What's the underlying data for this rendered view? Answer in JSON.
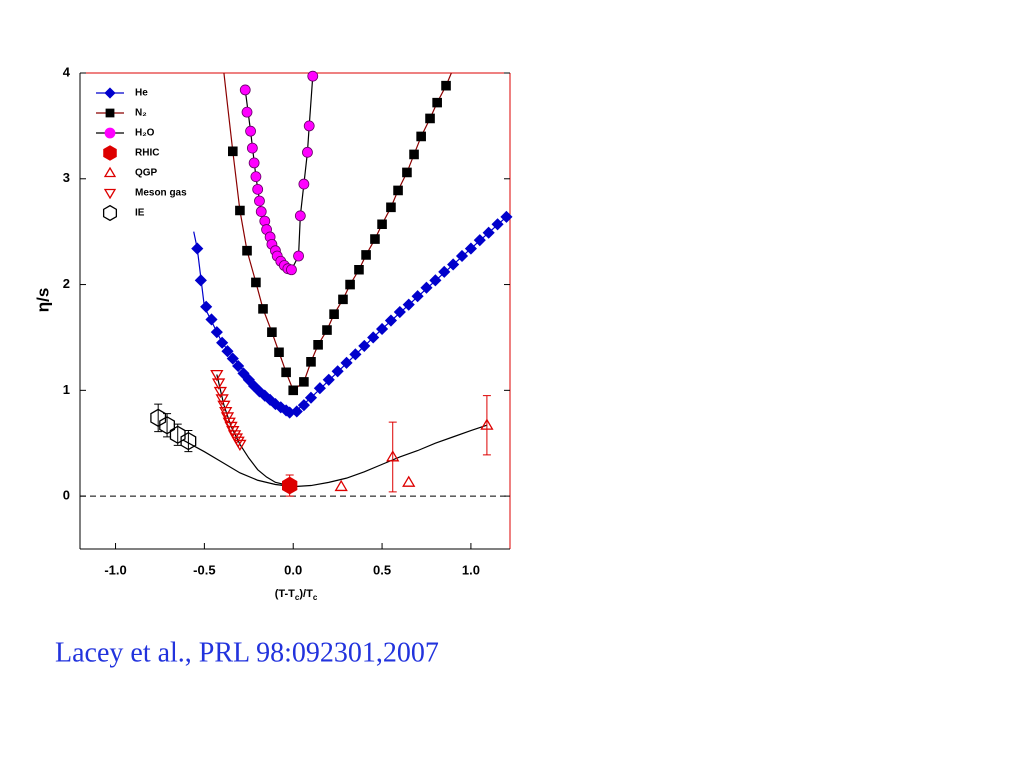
{
  "chart_data": {
    "type": "scatter",
    "xlabel": [
      "(T-T",
      "c",
      ")/T",
      "c"
    ],
    "ylabel": "η/s",
    "caption": "Lacey et al., PRL 98:092301,2007",
    "xlim": [
      -1.2,
      1.22
    ],
    "ylim": [
      -0.5,
      4
    ],
    "xticks": [
      {
        "value": -1,
        "label": "-1.0"
      },
      -0.5,
      {
        "value": 0,
        "label": "0.0"
      },
      0.5,
      {
        "value": 1,
        "label": "1.0"
      }
    ],
    "yticks": [
      0,
      1,
      2,
      3,
      4
    ],
    "hline": 0,
    "series": [
      {
        "name": "He",
        "color": "#0000cc",
        "marker": "diamond",
        "fill": true,
        "x": [
          -0.54,
          -0.52,
          -0.49,
          -0.46,
          -0.43,
          -0.4,
          -0.37,
          -0.34,
          -0.31,
          -0.28,
          -0.25,
          -0.22,
          -0.19,
          -0.16,
          -0.13,
          -0.1,
          -0.07,
          -0.04,
          -0.02,
          0.02,
          0.06,
          0.1,
          0.15,
          0.2,
          0.25,
          0.3,
          0.35,
          0.4,
          0.45,
          0.5,
          0.55,
          0.6,
          0.65,
          0.7,
          0.75,
          0.8,
          0.85,
          0.9,
          0.95,
          1.0,
          1.05,
          1.1,
          1.15,
          1.2
        ],
        "y": [
          2.34,
          2.04,
          1.79,
          1.67,
          1.55,
          1.45,
          1.37,
          1.3,
          1.23,
          1.16,
          1.1,
          1.04,
          0.99,
          0.95,
          0.91,
          0.87,
          0.84,
          0.81,
          0.79,
          0.8,
          0.86,
          0.93,
          1.02,
          1.1,
          1.18,
          1.26,
          1.34,
          1.42,
          1.5,
          1.58,
          1.66,
          1.74,
          1.81,
          1.89,
          1.97,
          2.04,
          2.12,
          2.19,
          2.27,
          2.34,
          2.42,
          2.49,
          2.57,
          2.64
        ]
      },
      {
        "name": "N₂",
        "color": "#000000",
        "marker": "square",
        "fill": true,
        "x": [
          -0.34,
          -0.3,
          -0.26,
          -0.21,
          -0.17,
          -0.12,
          -0.08,
          -0.04,
          0.0,
          0.06,
          0.1,
          0.14,
          0.19,
          0.23,
          0.28,
          0.32,
          0.37,
          0.41,
          0.46,
          0.5,
          0.55,
          0.59,
          0.64,
          0.68,
          0.72,
          0.77,
          0.81,
          0.86
        ],
        "y": [
          3.26,
          2.7,
          2.32,
          2.02,
          1.77,
          1.55,
          1.36,
          1.17,
          1.0,
          1.08,
          1.27,
          1.43,
          1.57,
          1.72,
          1.86,
          2.0,
          2.14,
          2.28,
          2.43,
          2.57,
          2.73,
          2.89,
          3.06,
          3.23,
          3.4,
          3.57,
          3.72,
          3.88
        ]
      },
      {
        "name": "H₂O",
        "color": "#ff00ff",
        "marker": "circle",
        "fill": true,
        "x": [
          -0.27,
          -0.26,
          -0.24,
          -0.23,
          -0.22,
          -0.21,
          -0.2,
          -0.19,
          -0.18,
          -0.16,
          -0.15,
          -0.13,
          -0.12,
          -0.1,
          -0.09,
          -0.07,
          -0.05,
          -0.03,
          -0.01,
          0.03,
          0.04,
          0.06,
          0.08,
          0.09,
          0.11
        ],
        "y": [
          3.84,
          3.63,
          3.45,
          3.29,
          3.15,
          3.02,
          2.9,
          2.79,
          2.69,
          2.6,
          2.52,
          2.45,
          2.38,
          2.32,
          2.27,
          2.22,
          2.18,
          2.15,
          2.14,
          2.27,
          2.65,
          2.95,
          3.25,
          3.5,
          3.97
        ]
      },
      {
        "name": "RHIC",
        "color": "#dd0000",
        "marker": "hexagon",
        "fill": true,
        "x": [
          -0.02
        ],
        "y": [
          0.1
        ],
        "errors": [
          0.1
        ]
      },
      {
        "name": "QGP",
        "color": "#dd0000",
        "marker": "triangle-up",
        "fill": false,
        "x": [
          0.27,
          0.56,
          0.65,
          1.09
        ],
        "y": [
          0.09,
          0.37,
          0.13,
          0.67
        ],
        "errors": [
          0,
          0.33,
          0,
          0.28
        ]
      },
      {
        "name": "Meson gas",
        "color": "#dd0000",
        "marker": "triangle-down",
        "fill": false,
        "x": [
          -0.43,
          -0.42,
          -0.41,
          -0.4,
          -0.39,
          -0.38,
          -0.37,
          -0.36,
          -0.35,
          -0.34,
          -0.33,
          -0.32,
          -0.31,
          -0.3
        ],
        "y": [
          1.15,
          1.07,
          0.99,
          0.92,
          0.86,
          0.8,
          0.75,
          0.7,
          0.66,
          0.62,
          0.58,
          0.55,
          0.52,
          0.49
        ]
      },
      {
        "name": "IE",
        "color": "#000000",
        "marker": "hexagon",
        "fill": false,
        "x": [
          -0.76,
          -0.71,
          -0.65,
          -0.59
        ],
        "y": [
          0.74,
          0.67,
          0.58,
          0.52
        ],
        "errors": [
          0.13,
          0.11,
          0.1,
          0.1
        ]
      }
    ],
    "curves": [
      {
        "color": "#0000cc",
        "x": [
          -0.56,
          -0.54,
          -0.5,
          -0.45,
          -0.4,
          -0.3,
          -0.2,
          -0.1,
          0.0,
          0.1,
          0.5,
          1.0,
          1.2
        ],
        "y": [
          2.5,
          2.34,
          1.79,
          1.62,
          1.45,
          1.23,
          1.01,
          0.87,
          0.78,
          0.93,
          1.58,
          2.34,
          2.64
        ]
      },
      {
        "color": "#8b0000",
        "x": [
          -0.39,
          -0.37,
          -0.34,
          -0.3,
          -0.26,
          -0.21,
          -0.17,
          -0.12,
          -0.08,
          -0.04,
          0.0,
          0.06,
          0.1,
          0.14,
          0.19,
          0.23,
          0.28,
          0.32,
          0.37,
          0.41,
          0.46,
          0.5,
          0.55,
          0.59,
          0.64,
          0.68,
          0.72,
          0.77,
          0.81,
          0.86,
          0.89
        ],
        "y": [
          4,
          3.7,
          3.26,
          2.7,
          2.32,
          2.02,
          1.77,
          1.55,
          1.36,
          1.17,
          1.0,
          1.08,
          1.27,
          1.43,
          1.57,
          1.72,
          1.86,
          2.0,
          2.14,
          2.28,
          2.43,
          2.57,
          2.73,
          2.89,
          3.06,
          3.23,
          3.4,
          3.57,
          3.72,
          3.88,
          4
        ]
      },
      {
        "color": "#000000",
        "x": [
          -0.27,
          -0.24,
          -0.21,
          -0.18,
          -0.15,
          -0.12,
          -0.09,
          -0.05,
          -0.01,
          0.03,
          0.04,
          0.06,
          0.08,
          0.09,
          0.11,
          0.13
        ],
        "y": [
          3.84,
          3.45,
          3.02,
          2.69,
          2.52,
          2.38,
          2.27,
          2.18,
          2.14,
          2.27,
          2.65,
          2.95,
          3.25,
          3.5,
          3.97,
          4.05
        ]
      },
      {
        "color": "#000000",
        "x": [
          -0.43,
          -0.39,
          -0.35,
          -0.3,
          -0.25,
          -0.2,
          -0.15,
          -0.1,
          -0.05,
          -0.02
        ],
        "y": [
          1.15,
          0.86,
          0.66,
          0.49,
          0.36,
          0.25,
          0.18,
          0.13,
          0.11,
          0.1
        ]
      },
      {
        "color": "#000000",
        "x": [
          -0.62,
          -0.5,
          -0.4,
          -0.3,
          -0.2,
          -0.1,
          0.0,
          0.1,
          0.2,
          0.3,
          0.4,
          0.5,
          0.6,
          0.7,
          0.8,
          0.9,
          1.0,
          1.09
        ],
        "y": [
          0.53,
          0.42,
          0.32,
          0.22,
          0.15,
          0.11,
          0.09,
          0.1,
          0.13,
          0.17,
          0.23,
          0.3,
          0.37,
          0.43,
          0.5,
          0.56,
          0.62,
          0.67
        ]
      }
    ]
  }
}
